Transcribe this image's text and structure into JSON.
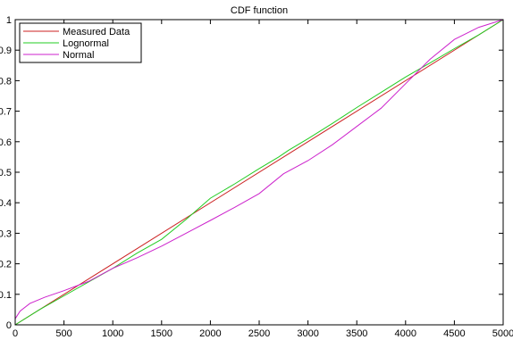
{
  "chart_data": {
    "type": "line",
    "title": "CDF function",
    "xlabel": "",
    "ylabel": "",
    "xlim": [
      0,
      5000
    ],
    "ylim": [
      0,
      1
    ],
    "grid": false,
    "legend_position": "top-left",
    "xticks": [
      0,
      500,
      1000,
      1500,
      2000,
      2500,
      3000,
      3500,
      4000,
      4500,
      5000
    ],
    "yticks": [
      0,
      0.1,
      0.2,
      0.3,
      0.4,
      0.5,
      0.6,
      0.7,
      0.8,
      0.9,
      1
    ],
    "ytick_labels": [
      "0",
      "0.1",
      "0.2",
      "0.3",
      "0.4",
      "0.5",
      "0.6",
      "0.7",
      "0.8",
      "0.9",
      "1"
    ],
    "series": [
      {
        "name": "Measured Data",
        "color": "#cc2222",
        "x": [
          0,
          5000
        ],
        "y": [
          0,
          1
        ]
      },
      {
        "name": "Lognormal",
        "color": "#22cc22",
        "x": [
          0,
          250,
          500,
          750,
          1000,
          1250,
          1500,
          1750,
          2000,
          2250,
          2500,
          2700,
          2800,
          3000,
          3250,
          3500,
          3750,
          4000,
          4250,
          4500,
          4750,
          5000
        ],
        "y": [
          0,
          0.05,
          0.095,
          0.14,
          0.185,
          0.235,
          0.28,
          0.345,
          0.415,
          0.462,
          0.512,
          0.55,
          0.572,
          0.61,
          0.66,
          0.712,
          0.762,
          0.812,
          0.858,
          0.905,
          0.95,
          1
        ]
      },
      {
        "name": "Normal",
        "color": "#cc22cc",
        "x": [
          0,
          50,
          150,
          300,
          500,
          750,
          1000,
          1250,
          1500,
          1750,
          2000,
          2250,
          2500,
          2750,
          3000,
          3250,
          3500,
          3750,
          4000,
          4250,
          4500,
          4750,
          5000
        ],
        "y": [
          0.02,
          0.045,
          0.07,
          0.09,
          0.112,
          0.142,
          0.185,
          0.22,
          0.258,
          0.3,
          0.342,
          0.385,
          0.43,
          0.495,
          0.538,
          0.59,
          0.65,
          0.71,
          0.79,
          0.87,
          0.935,
          0.975,
          1
        ]
      }
    ]
  }
}
